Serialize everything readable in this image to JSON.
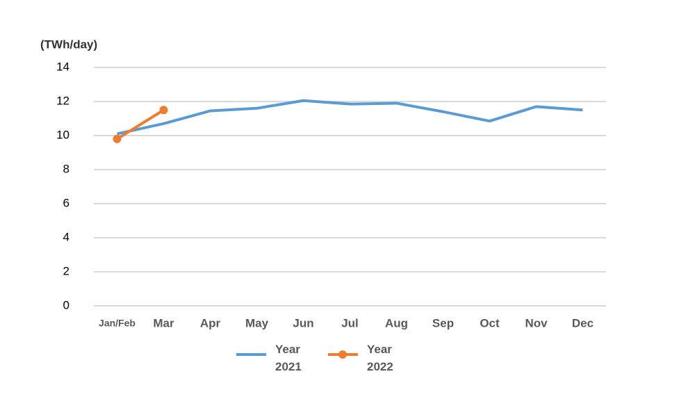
{
  "chart_data": {
    "type": "line",
    "y_label": "(TWh/day)",
    "categories": [
      "Jan/Feb",
      "Mar",
      "Apr",
      "May",
      "Jun",
      "Jul",
      "Aug",
      "Sep",
      "Oct",
      "Nov",
      "Dec"
    ],
    "series": [
      {
        "name": "Year 2021",
        "color": "#5b9bd5",
        "marker": false,
        "values": [
          10.1,
          10.7,
          11.45,
          11.6,
          12.05,
          11.85,
          11.9,
          11.4,
          10.85,
          11.7,
          11.5
        ]
      },
      {
        "name": "Year 2022",
        "color": "#ed7d31",
        "marker": true,
        "values": [
          9.8,
          11.5,
          null,
          null,
          null,
          null,
          null,
          null,
          null,
          null,
          null
        ]
      }
    ],
    "ylim": [
      0,
      14
    ],
    "yticks": [
      0,
      2,
      4,
      6,
      8,
      10,
      12,
      14
    ],
    "grid": true,
    "legend": "bottom"
  }
}
